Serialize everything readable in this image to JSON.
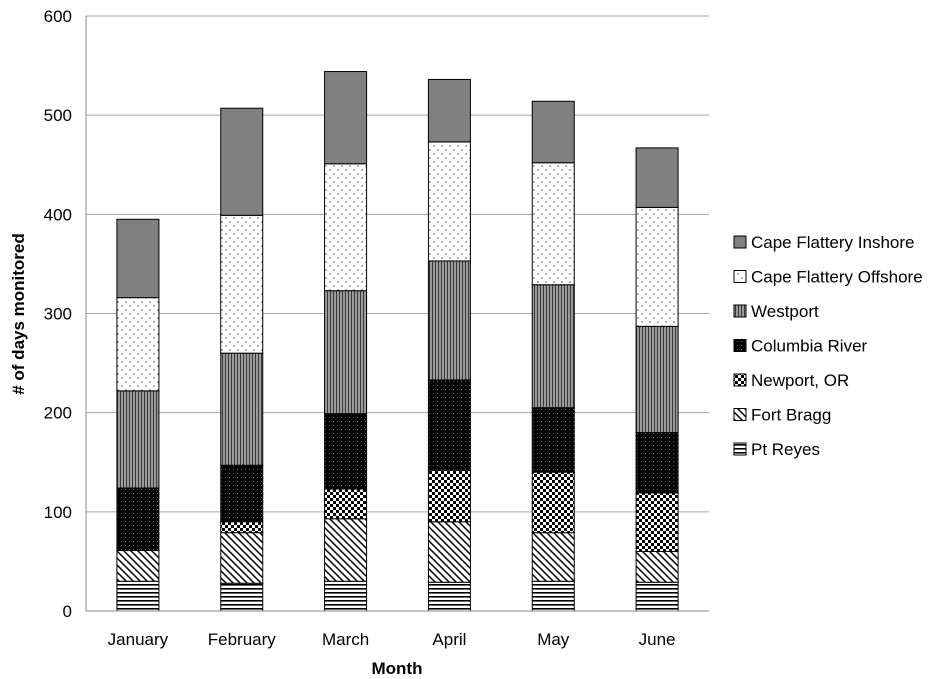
{
  "chart_data": {
    "type": "bar",
    "stacked": true,
    "title": "",
    "xlabel": "Month",
    "ylabel": "# of days monitored",
    "ylim": [
      0,
      600
    ],
    "yticks": [
      0,
      100,
      200,
      300,
      400,
      500,
      600
    ],
    "grid": "horizontal",
    "legend_position": "right",
    "categories": [
      "January",
      "February",
      "March",
      "April",
      "May",
      "June"
    ],
    "series": [
      {
        "name": "Pt Reyes",
        "pattern": "horizontal-lines",
        "values": [
          30,
          28,
          30,
          29,
          30,
          29
        ]
      },
      {
        "name": "Fort Bragg",
        "pattern": "diagonal-lines",
        "values": [
          31,
          51,
          63,
          61,
          49,
          31
        ]
      },
      {
        "name": "Newport, OR",
        "pattern": "checker",
        "values": [
          0,
          11,
          30,
          52,
          61,
          59
        ]
      },
      {
        "name": "Columbia River",
        "pattern": "dense-black-dots",
        "values": [
          63,
          57,
          76,
          91,
          65,
          61
        ]
      },
      {
        "name": "Westport",
        "pattern": "vertical-lines",
        "values": [
          98,
          113,
          124,
          120,
          124,
          107
        ]
      },
      {
        "name": "Cape Flattery Offshore",
        "pattern": "sparse-dots",
        "values": [
          94,
          139,
          128,
          120,
          123,
          120
        ]
      },
      {
        "name": "Cape Flattery Inshore",
        "pattern": "solid-gray",
        "values": [
          79,
          108,
          93,
          63,
          62,
          60
        ]
      }
    ]
  }
}
